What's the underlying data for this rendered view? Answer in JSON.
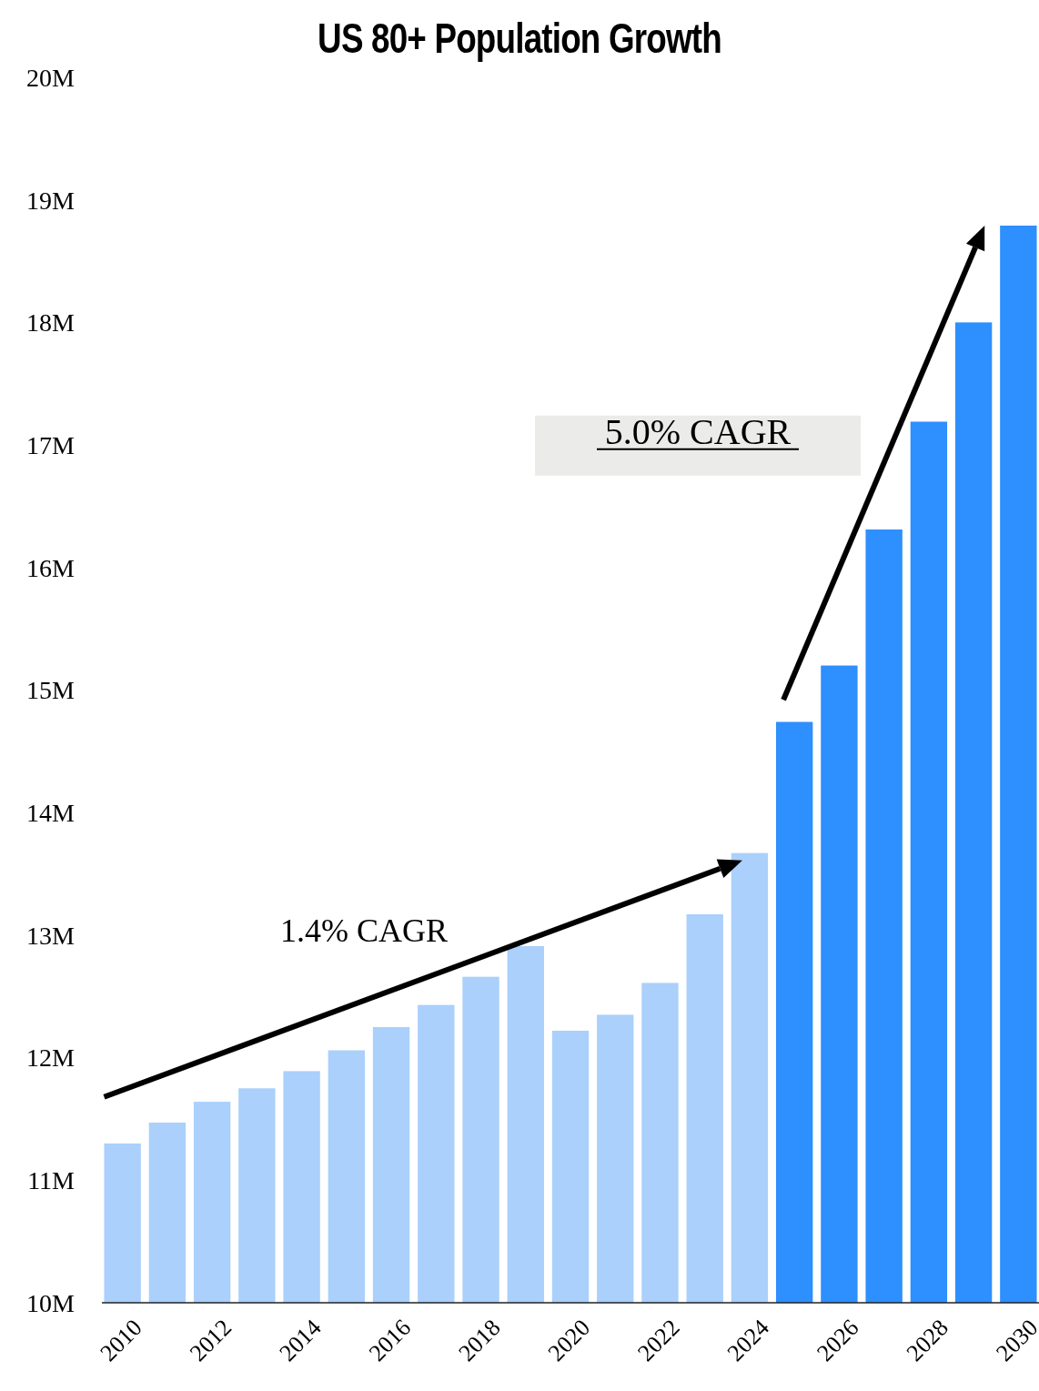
{
  "chart_data": {
    "type": "bar",
    "title": "US 80+ Population Growth",
    "categories": [
      "2010",
      null,
      "2012",
      null,
      "2014",
      null,
      "2016",
      null,
      "2018",
      null,
      "2020",
      null,
      "2022",
      null,
      "2024",
      null,
      "2026",
      null,
      "2028",
      null,
      "2030"
    ],
    "values": [
      11.3,
      11.47,
      11.64,
      11.75,
      11.89,
      12.06,
      12.25,
      12.43,
      12.66,
      12.91,
      12.22,
      12.35,
      12.61,
      13.17,
      13.67,
      14.74,
      15.2,
      16.31,
      17.19,
      18.0,
      18.79
    ],
    "colors": [
      "#aad0fb",
      "#aad0fb",
      "#aad0fb",
      "#aad0fb",
      "#aad0fb",
      "#aad0fb",
      "#aad0fb",
      "#aad0fb",
      "#aad0fb",
      "#aad0fb",
      "#aad0fb",
      "#aad0fb",
      "#aad0fb",
      "#aad0fb",
      "#aad0fb",
      "#2e8ffe",
      "#2e8ffe",
      "#2e8ffe",
      "#2e8ffe",
      "#2e8ffe",
      "#2e8ffe"
    ],
    "ylim": [
      10,
      20
    ],
    "yticks": [
      {
        "value": 10,
        "label": "10M"
      },
      {
        "value": 11,
        "label": "11M"
      },
      {
        "value": 12,
        "label": "12M"
      },
      {
        "value": 13,
        "label": "13M"
      },
      {
        "value": 14,
        "label": "14M"
      },
      {
        "value": 15,
        "label": "15M"
      },
      {
        "value": 16,
        "label": "16M"
      },
      {
        "value": 17,
        "label": "17M"
      },
      {
        "value": 18,
        "label": "18M"
      },
      {
        "value": 19,
        "label": "19M"
      },
      {
        "value": 20,
        "label": "20M"
      }
    ],
    "grid": false,
    "annotations": [
      "1.4% CAGR",
      "5.0% CAGR"
    ]
  }
}
